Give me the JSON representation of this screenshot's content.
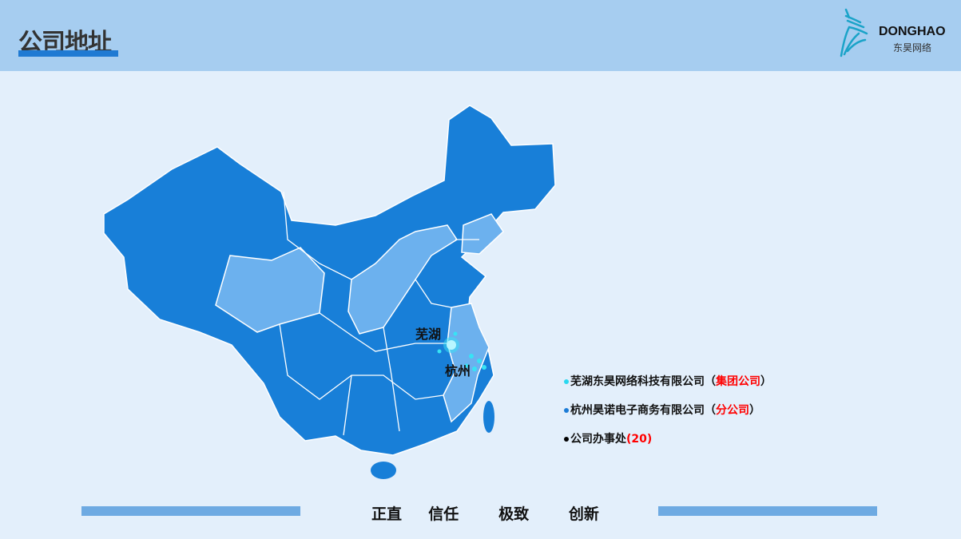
{
  "header": {
    "title": "公司地址",
    "logo_en": "DONGHAO",
    "logo_cn": "东昊网络"
  },
  "map": {
    "cities": [
      {
        "name": "芜湖"
      },
      {
        "name": "杭州"
      }
    ],
    "colors": {
      "region": "#187fd8",
      "highlight": "#6cb1ee",
      "marker": "#37e3f5"
    }
  },
  "legend": [
    {
      "name": "芜湖东昊网络科技有限公司",
      "open": "（",
      "tag": "集团公司",
      "close": "）",
      "dot": "#2ad8f0"
    },
    {
      "name": "杭州昊诺电子商务有限公司",
      "open": "（",
      "tag": "分公司",
      "close": "）",
      "dot": "#1b7bd6"
    },
    {
      "name": "公司办事处",
      "open": "(",
      "tag": "20",
      "close": ")",
      "dot": "#000000"
    }
  ],
  "footer": {
    "motto": "正直  信任   极致   创新"
  }
}
